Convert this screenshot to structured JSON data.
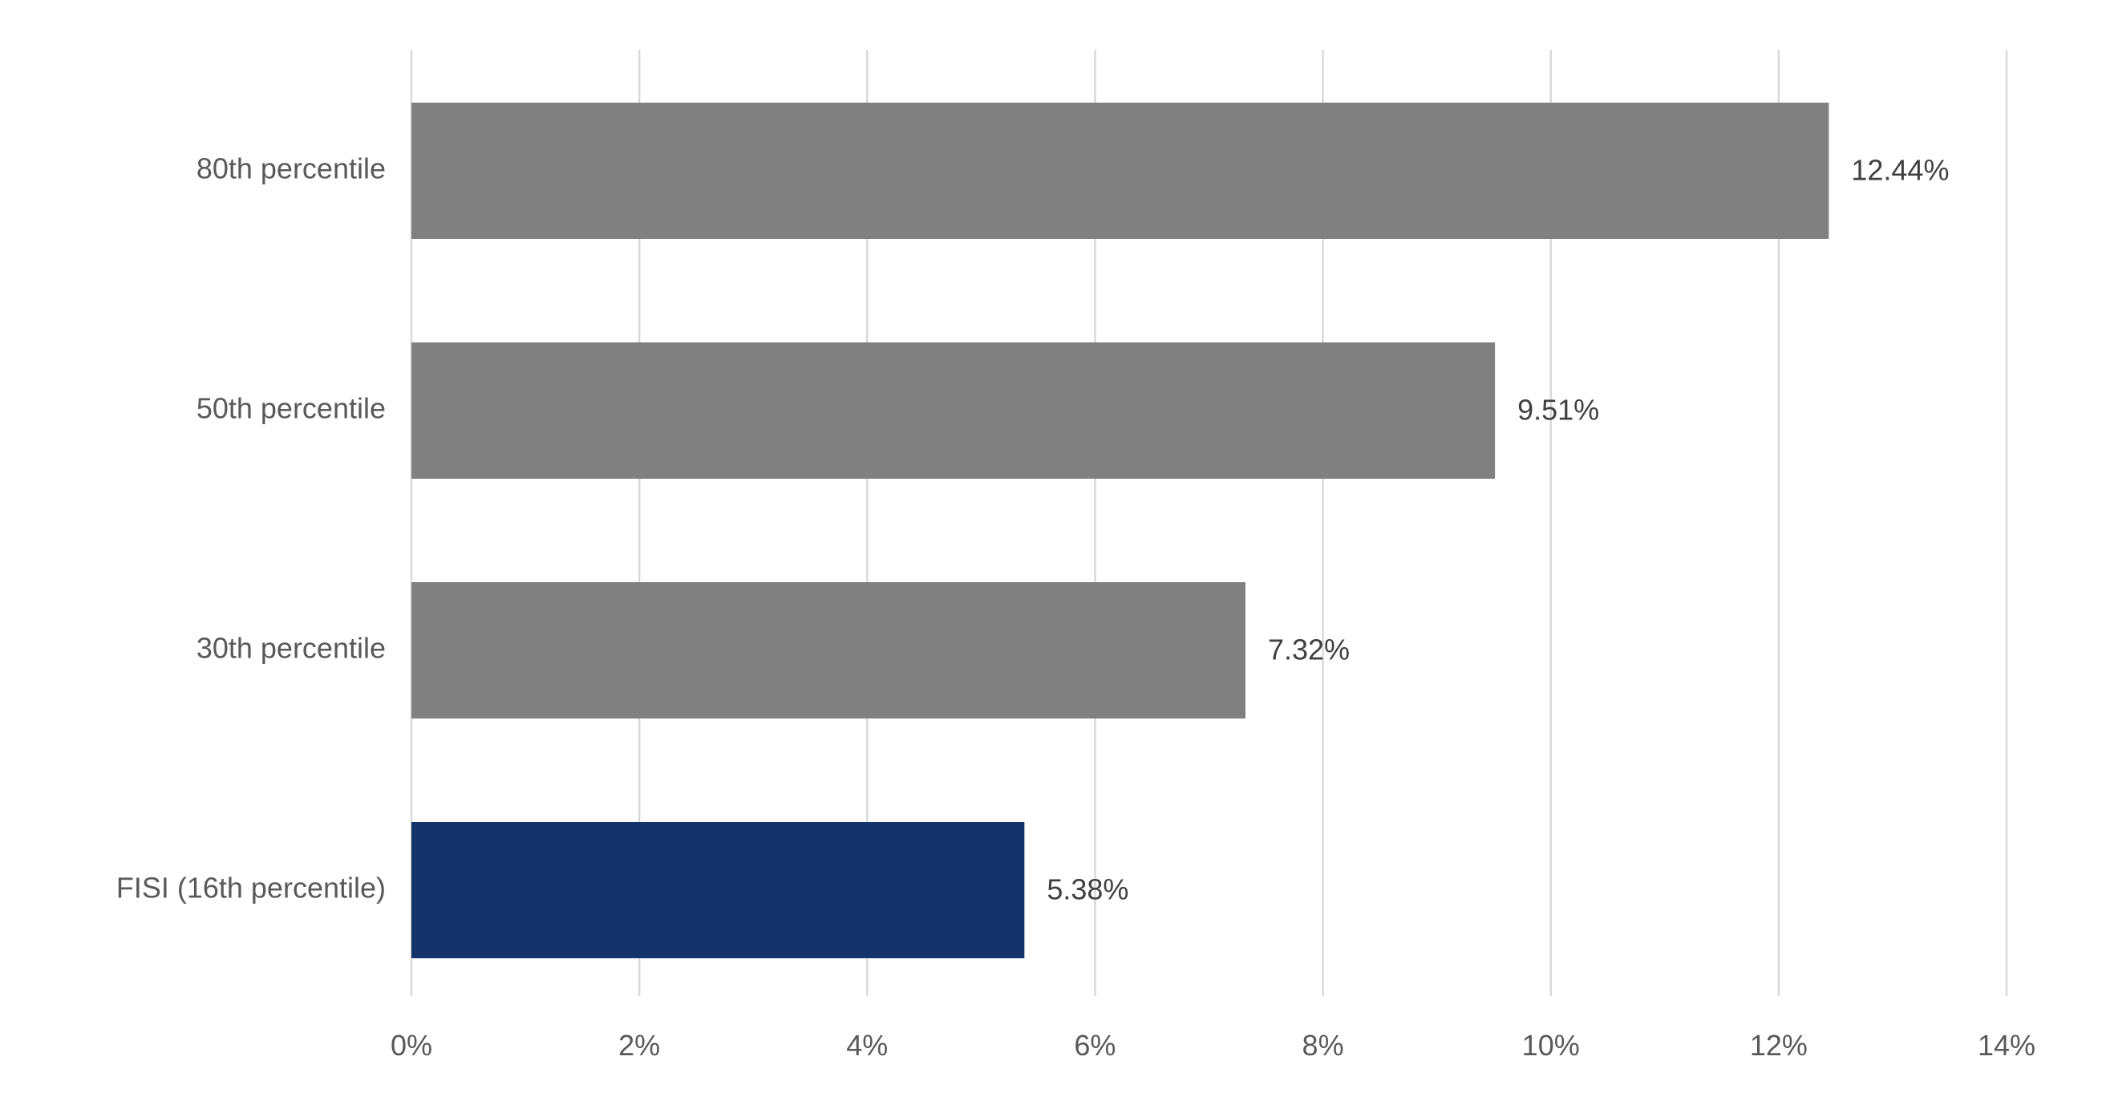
{
  "chart_data": {
    "type": "bar",
    "orientation": "horizontal",
    "categories": [
      "80th percentile",
      "50th percentile",
      "30th percentile",
      "FISI (16th percentile)"
    ],
    "values": [
      12.44,
      9.51,
      7.32,
      5.38
    ],
    "data_labels": [
      "12.44%",
      "9.51%",
      "7.32%",
      "5.38%"
    ],
    "bar_colors": [
      "#808080",
      "#808080",
      "#808080",
      "#14336b"
    ],
    "x_ticks": [
      0,
      2,
      4,
      6,
      8,
      10,
      12,
      14
    ],
    "x_tick_labels": [
      "0%",
      "2%",
      "4%",
      "6%",
      "8%",
      "10%",
      "12%",
      "14%"
    ],
    "xlim": [
      0,
      14
    ],
    "grid": "vertical",
    "legend": "none",
    "title": "",
    "xlabel": "",
    "ylabel": ""
  }
}
